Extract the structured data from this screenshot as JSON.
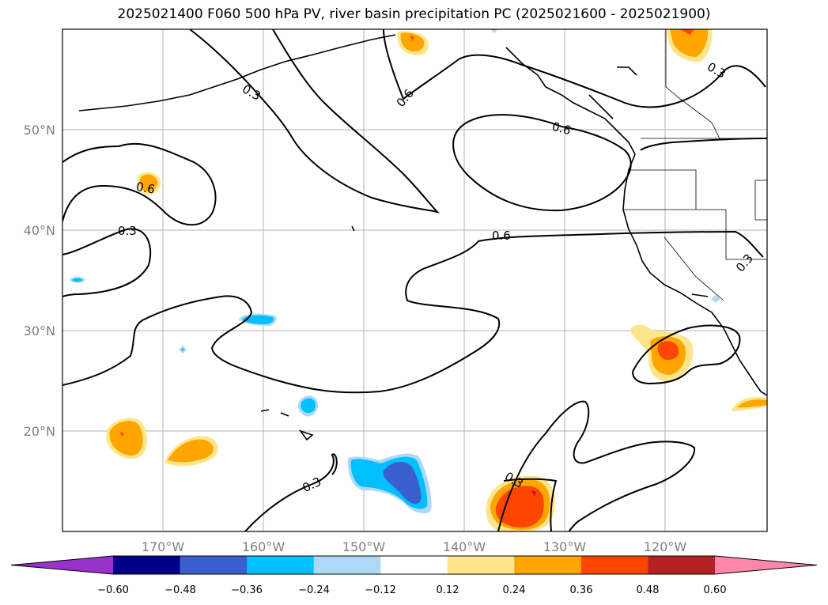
{
  "title": "2025021400 F060 500 hPa PV, river basin precipitation PC (2025021600 - 2025021900)",
  "map": {
    "lon_range": [
      -180,
      -110
    ],
    "lat_range": [
      10,
      60
    ],
    "lon_ticks": [
      {
        "value": -170,
        "label": "170°W"
      },
      {
        "value": -160,
        "label": "160°W"
      },
      {
        "value": -150,
        "label": "150°W"
      },
      {
        "value": -140,
        "label": "140°W"
      },
      {
        "value": -130,
        "label": "130°W"
      },
      {
        "value": -120,
        "label": "120°W"
      }
    ],
    "lat_ticks": [
      {
        "value": 20,
        "label": "20°N"
      },
      {
        "value": 30,
        "label": "30°N"
      },
      {
        "value": 40,
        "label": "40°N"
      },
      {
        "value": 50,
        "label": "50°N"
      }
    ],
    "grid": true,
    "contour_labels": [
      "0.3",
      "0.6",
      "0.3",
      "0.6",
      "0.6",
      "0.3",
      "0.6",
      "0.3",
      "0.3",
      "0.3"
    ]
  },
  "colorbar": {
    "ticks": [
      "−0.60",
      "−0.48",
      "−0.36",
      "−0.24",
      "−0.12",
      "0.12",
      "0.24",
      "0.36",
      "0.48",
      "0.60"
    ],
    "colors": [
      "#9932cc",
      "#00008b",
      "#3a5fcd",
      "#00bfff",
      "#add8f6",
      "#ffffff",
      "#fde68a",
      "#ffa500",
      "#ff4500",
      "#b22222",
      "#ff88aa"
    ]
  }
}
